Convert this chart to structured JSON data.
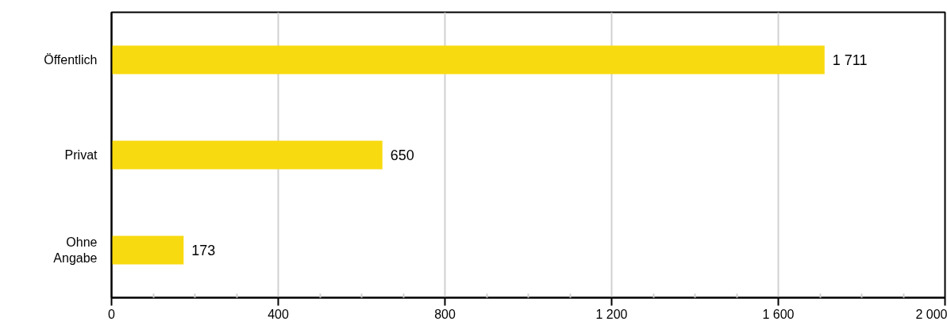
{
  "chart_data": {
    "type": "bar",
    "orientation": "horizontal",
    "categories": [
      "Öffentlich",
      "Privat",
      "Ohne Angabe"
    ],
    "values": [
      1711,
      650,
      173
    ],
    "value_labels": [
      "1 711",
      "650",
      "173"
    ],
    "color": "#f8da10",
    "xlim": [
      0,
      2000
    ],
    "xticks": [
      0,
      400,
      800,
      {
        "value": 1200,
        "label": "1 200"
      },
      {
        "value": 1600,
        "label": "1 600"
      },
      {
        "value": 2000,
        "label": "2 000"
      }
    ],
    "grid": "x"
  }
}
